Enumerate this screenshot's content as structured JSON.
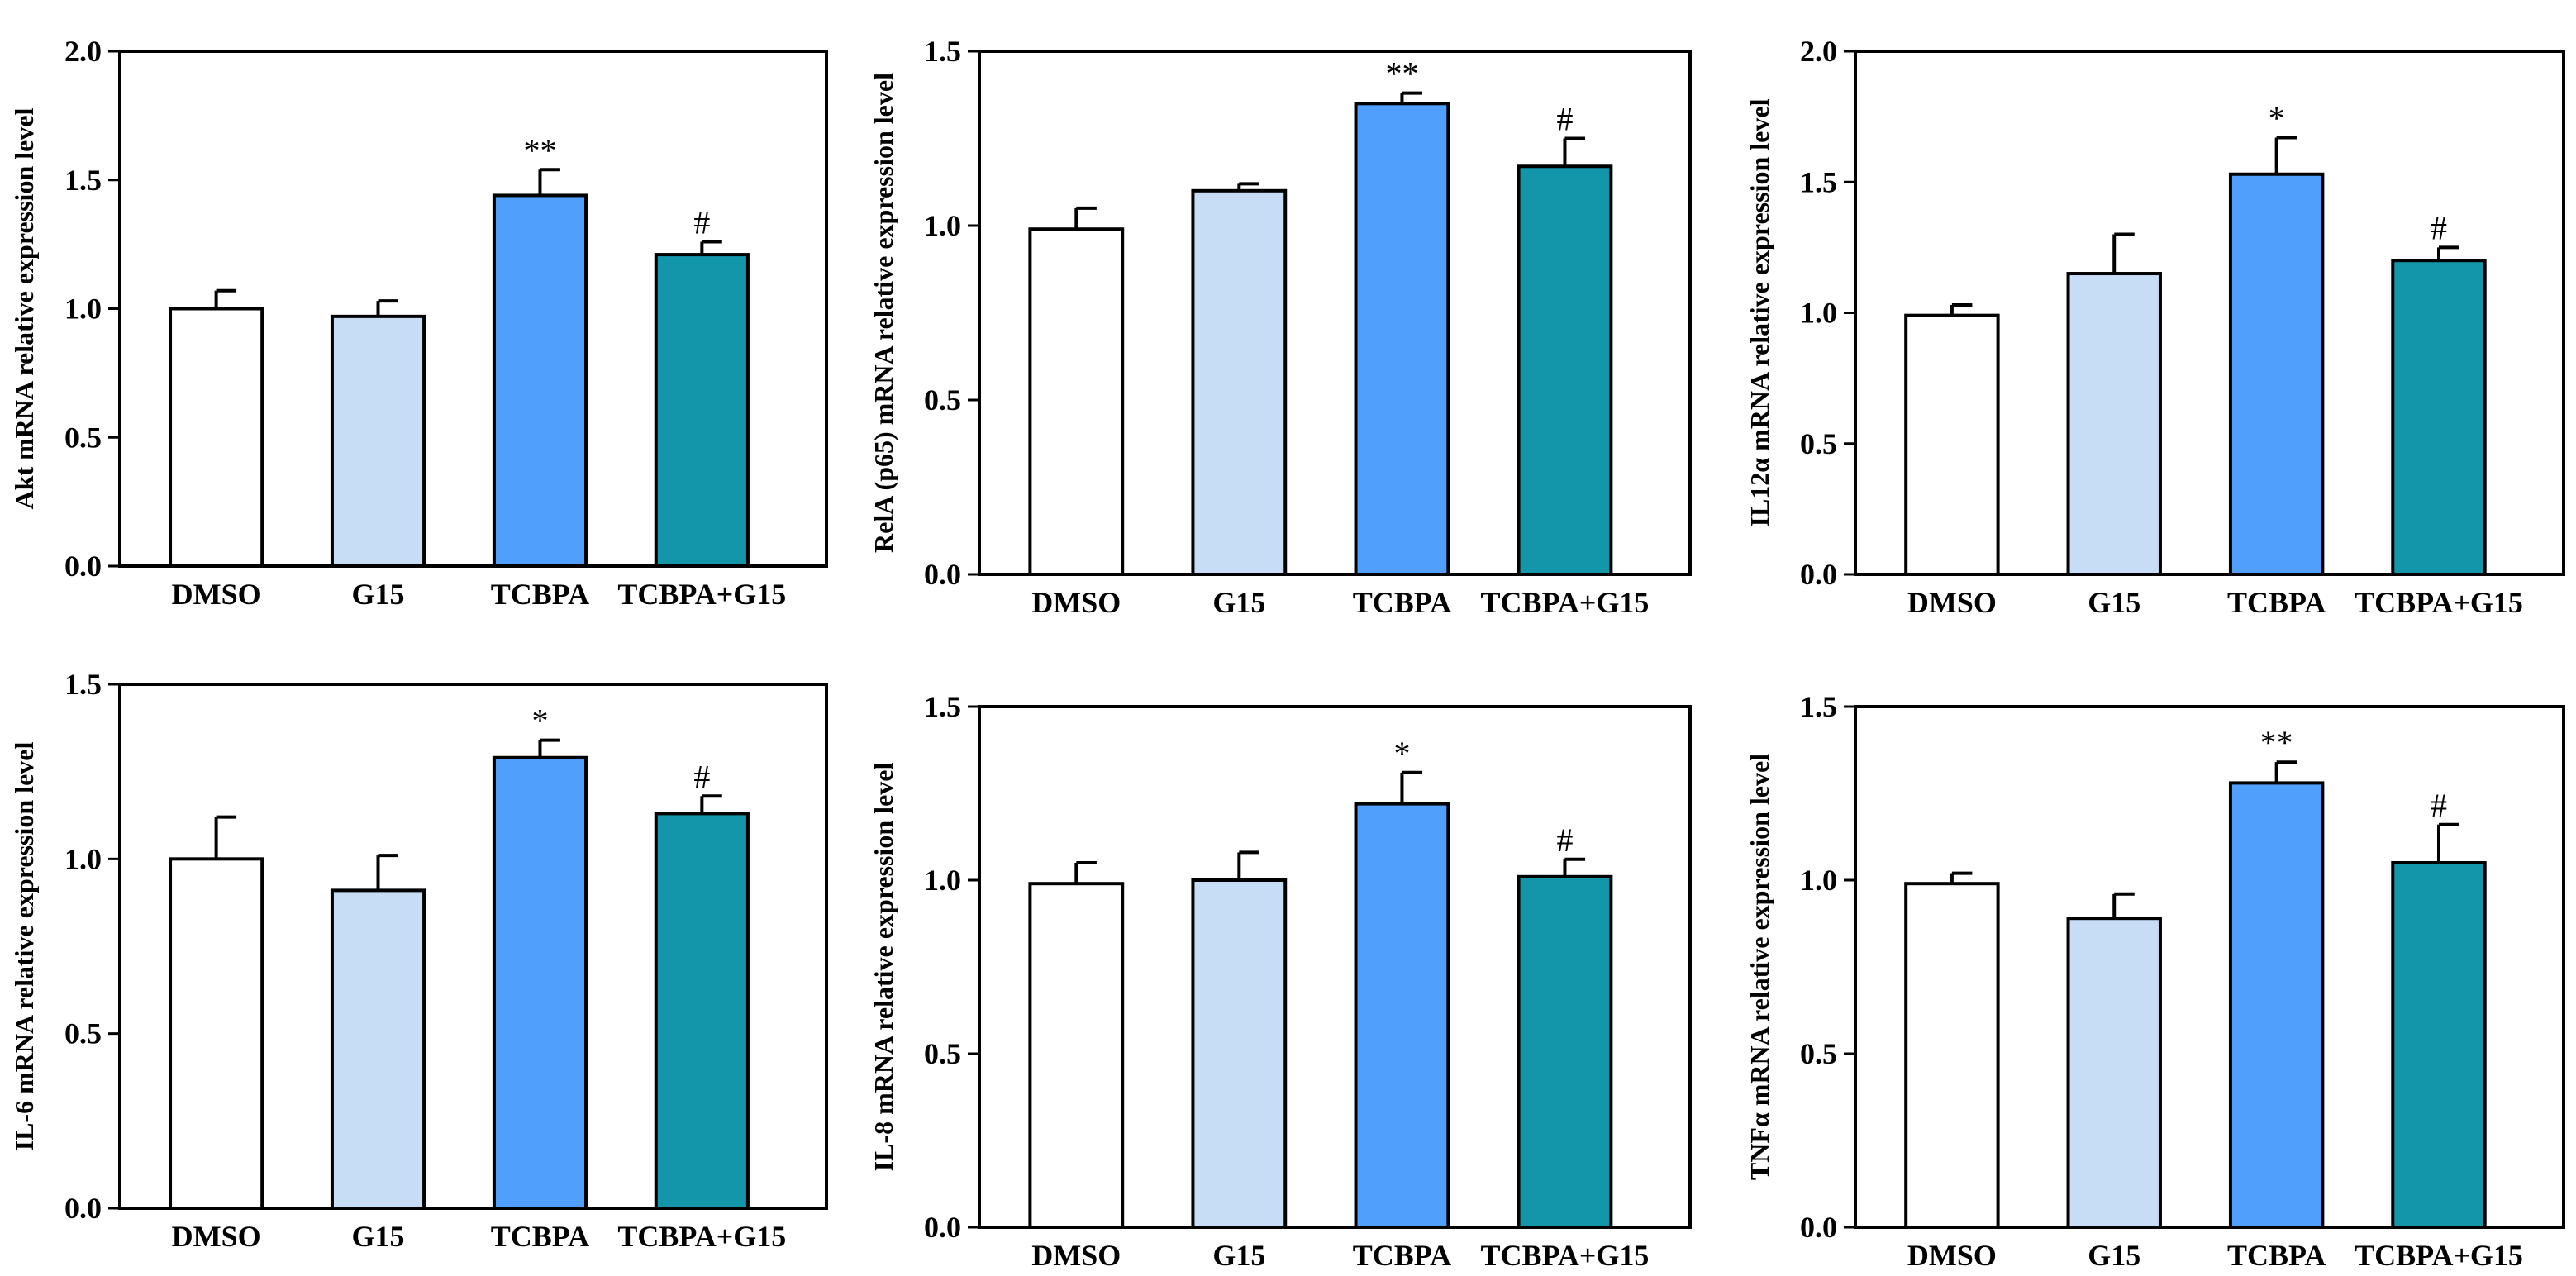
{
  "chart_data": [
    {
      "type": "bar",
      "ylabel": "Akt mRNA relative expression level",
      "categories": [
        "DMSO",
        "G15",
        "TCBPA",
        "TCBPA+G15"
      ],
      "values": [
        1.0,
        0.97,
        1.44,
        1.21
      ],
      "errors": [
        0.07,
        0.06,
        0.1,
        0.05
      ],
      "significance": [
        "",
        "",
        "**",
        "#"
      ],
      "ylim": [
        0,
        2.0
      ],
      "yticks": [
        "0.0",
        "0.5",
        "1.0",
        "1.5",
        "2.0"
      ]
    },
    {
      "type": "bar",
      "ylabel": "RelA (p65) mRNA relative expression level",
      "categories": [
        "DMSO",
        "G15",
        "TCBPA",
        "TCBPA+G15"
      ],
      "values": [
        0.99,
        1.1,
        1.35,
        1.17
      ],
      "errors": [
        0.06,
        0.02,
        0.03,
        0.08
      ],
      "significance": [
        "",
        "",
        "**",
        "#"
      ],
      "ylim": [
        0,
        1.5
      ],
      "yticks": [
        "0.0",
        "0.5",
        "1.0",
        "1.5"
      ]
    },
    {
      "type": "bar",
      "ylabel": "IL12α mRNA relative expression level",
      "categories": [
        "DMSO",
        "G15",
        "TCBPA",
        "TCBPA+G15"
      ],
      "values": [
        0.99,
        1.15,
        1.53,
        1.2
      ],
      "errors": [
        0.04,
        0.15,
        0.14,
        0.05
      ],
      "significance": [
        "",
        "",
        "*",
        "#"
      ],
      "ylim": [
        0,
        2.0
      ],
      "yticks": [
        "0.0",
        "0.5",
        "1.0",
        "1.5",
        "2.0"
      ]
    },
    {
      "type": "bar",
      "ylabel": "IL-6 mRNA relative expression level",
      "categories": [
        "DMSO",
        "G15",
        "TCBPA",
        "TCBPA+G15"
      ],
      "values": [
        1.0,
        0.91,
        1.29,
        1.13
      ],
      "errors": [
        0.12,
        0.1,
        0.05,
        0.05
      ],
      "significance": [
        "",
        "",
        "*",
        "#"
      ],
      "ylim": [
        0,
        1.5
      ],
      "yticks": [
        "0.0",
        "0.5",
        "1.0",
        "1.5"
      ]
    },
    {
      "type": "bar",
      "ylabel": "IL-8 mRNA relative expression level",
      "categories": [
        "DMSO",
        "G15",
        "TCBPA",
        "TCBPA+G15"
      ],
      "values": [
        0.99,
        1.0,
        1.22,
        1.01
      ],
      "errors": [
        0.06,
        0.08,
        0.09,
        0.05
      ],
      "significance": [
        "",
        "",
        "*",
        "#"
      ],
      "ylim": [
        0,
        1.5
      ],
      "yticks": [
        "0.0",
        "0.5",
        "1.0",
        "1.5"
      ]
    },
    {
      "type": "bar",
      "ylabel": "TNFα mRNA relative expression level",
      "categories": [
        "DMSO",
        "G15",
        "TCBPA",
        "TCBPA+G15"
      ],
      "values": [
        0.99,
        0.89,
        1.28,
        1.05
      ],
      "errors": [
        0.03,
        0.07,
        0.06,
        0.11
      ],
      "significance": [
        "",
        "",
        "**",
        "#"
      ],
      "ylim": [
        0,
        1.5
      ],
      "yticks": [
        "0.0",
        "0.5",
        "1.0",
        "1.5"
      ]
    }
  ],
  "colors": {
    "bars": [
      "#ffffff",
      "#c7dcf5",
      "#519ffc",
      "#1496aa"
    ],
    "stroke": "#000000"
  }
}
